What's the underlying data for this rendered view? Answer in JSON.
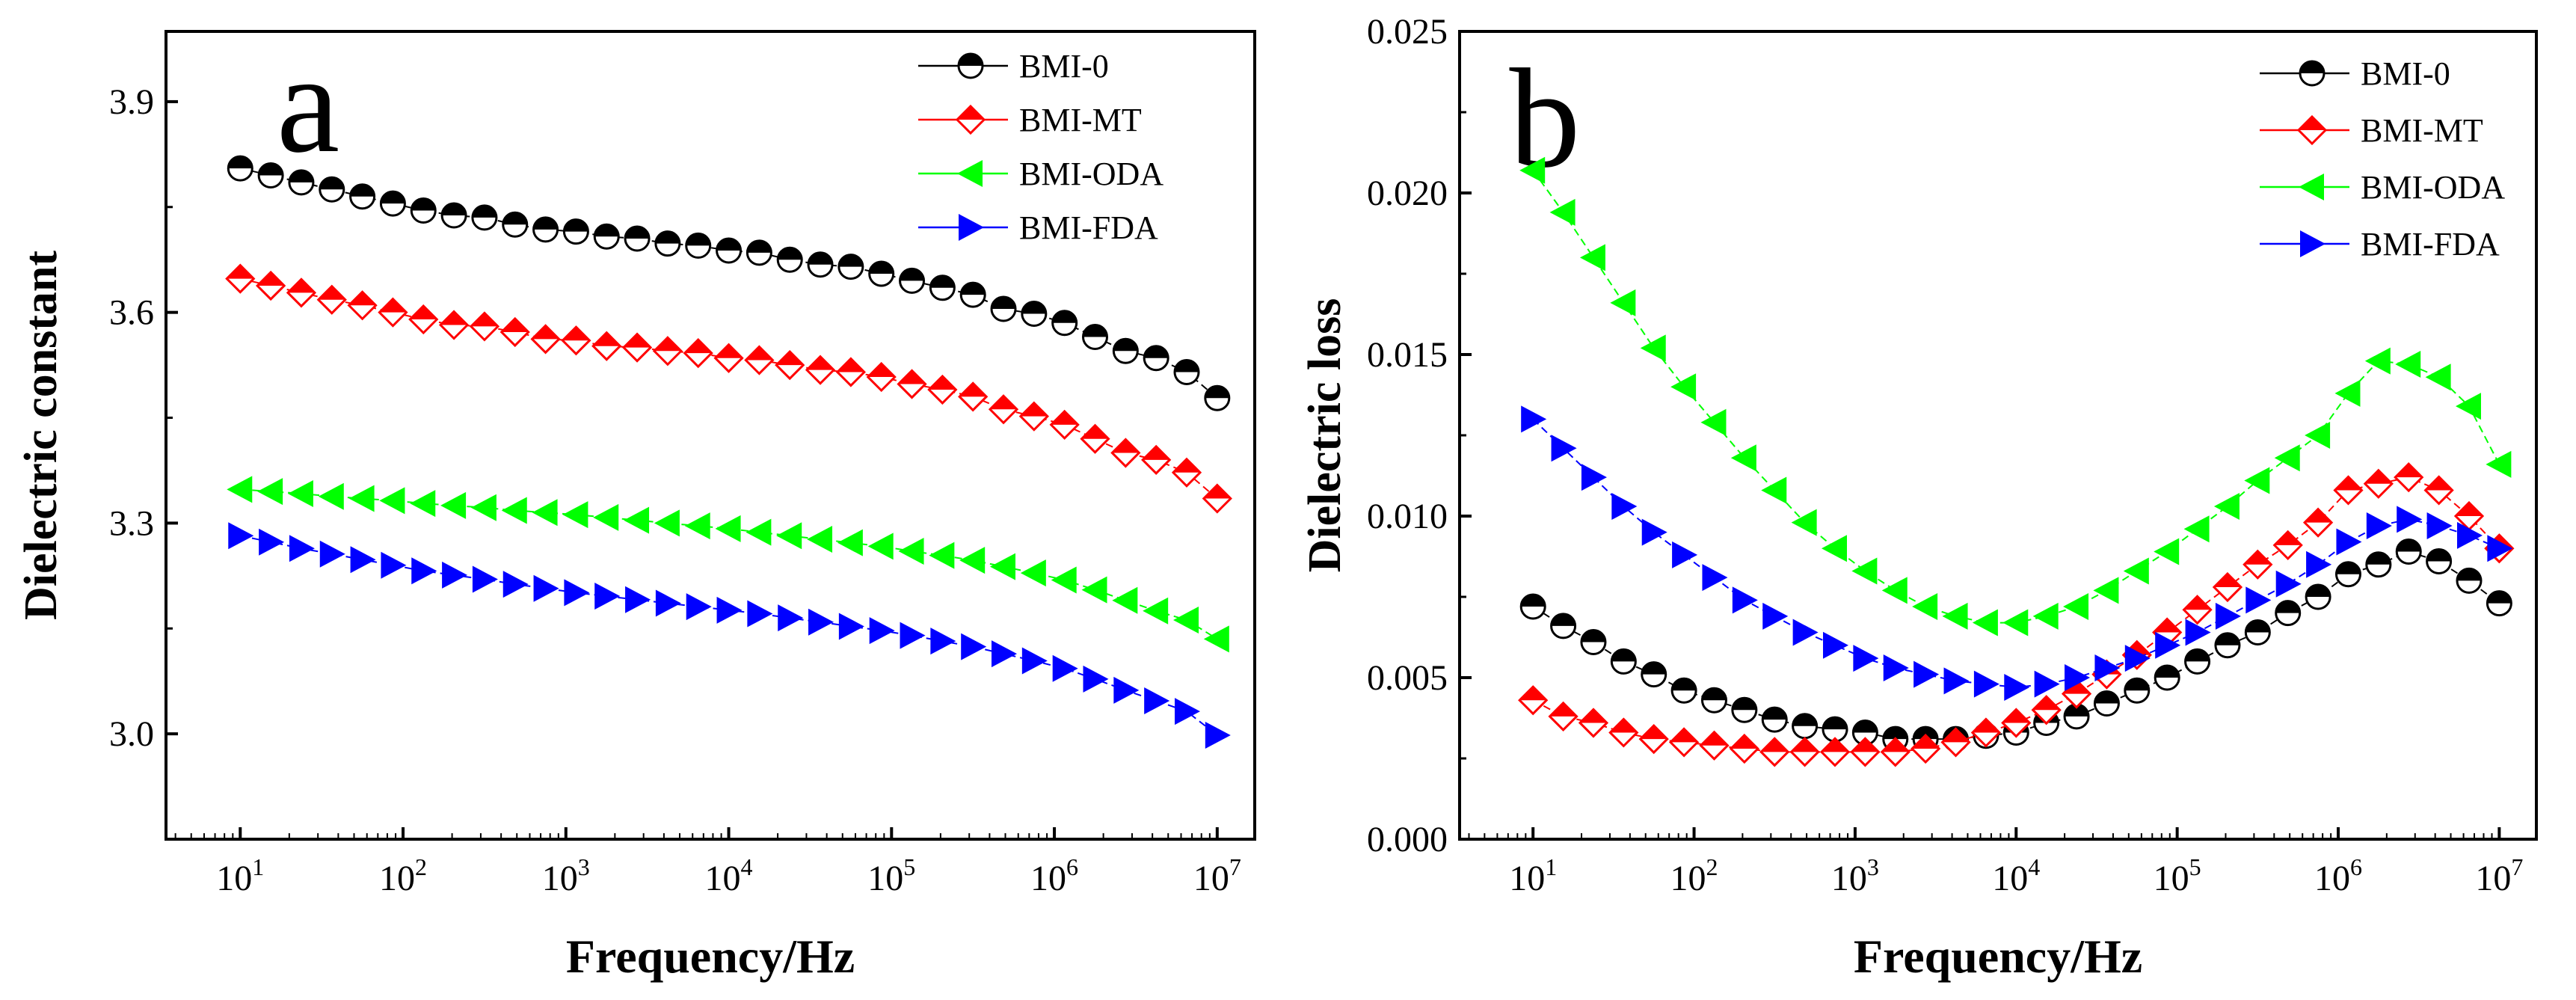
{
  "chart_data": [
    {
      "type": "scatter",
      "panel_label": "a",
      "xlabel": "Frequency/Hz",
      "ylabel": "Dielectric constant",
      "xscale": "log",
      "xlim": [
        3.5,
        17000000
      ],
      "ylim": [
        2.85,
        4.0
      ],
      "yticks": [
        "3.0",
        "3.3",
        "3.6",
        "3.9"
      ],
      "ytick_values": [
        3.0,
        3.3,
        3.6,
        3.9
      ],
      "xticks": [
        {
          "base": "10",
          "exp": "1",
          "value": 10
        },
        {
          "base": "10",
          "exp": "2",
          "value": 100
        },
        {
          "base": "10",
          "exp": "3",
          "value": 1000
        },
        {
          "base": "10",
          "exp": "4",
          "value": 10000
        },
        {
          "base": "10",
          "exp": "5",
          "value": 100000
        },
        {
          "base": "10",
          "exp": "6",
          "value": 1000000
        },
        {
          "base": "10",
          "exp": "7",
          "value": 10000000
        }
      ],
      "legend_position": "top-right",
      "series": [
        {
          "name": "BMI-0",
          "marker": "half-circle",
          "color": "#000000",
          "values": [
            3.805,
            3.795,
            3.785,
            3.775,
            3.765,
            3.755,
            3.745,
            3.738,
            3.735,
            3.725,
            3.718,
            3.715,
            3.708,
            3.705,
            3.698,
            3.695,
            3.688,
            3.685,
            3.675,
            3.668,
            3.665,
            3.655,
            3.645,
            3.635,
            3.625,
            3.605,
            3.598,
            3.585,
            3.565,
            3.545,
            3.535,
            3.515,
            3.478
          ]
        },
        {
          "name": "BMI-MT",
          "marker": "half-diamond",
          "color": "#ff0000",
          "values": [
            3.648,
            3.638,
            3.628,
            3.618,
            3.61,
            3.6,
            3.59,
            3.582,
            3.58,
            3.572,
            3.562,
            3.56,
            3.552,
            3.55,
            3.545,
            3.542,
            3.535,
            3.532,
            3.525,
            3.518,
            3.515,
            3.508,
            3.498,
            3.49,
            3.48,
            3.462,
            3.452,
            3.44,
            3.42,
            3.4,
            3.39,
            3.372,
            3.335
          ]
        },
        {
          "name": "BMI-ODA",
          "marker": "triangle-left",
          "color": "#00ff00",
          "values": [
            3.348,
            3.345,
            3.342,
            3.338,
            3.335,
            3.332,
            3.328,
            3.325,
            3.322,
            3.318,
            3.315,
            3.312,
            3.308,
            3.304,
            3.3,
            3.296,
            3.292,
            3.287,
            3.282,
            3.277,
            3.272,
            3.267,
            3.26,
            3.254,
            3.247,
            3.238,
            3.229,
            3.219,
            3.205,
            3.19,
            3.175,
            3.162,
            3.135
          ]
        },
        {
          "name": "BMI-FDA",
          "marker": "triangle-right",
          "color": "#0000ff",
          "values": [
            3.282,
            3.273,
            3.264,
            3.256,
            3.248,
            3.24,
            3.232,
            3.226,
            3.22,
            3.213,
            3.207,
            3.201,
            3.196,
            3.191,
            3.186,
            3.181,
            3.176,
            3.171,
            3.165,
            3.159,
            3.153,
            3.147,
            3.14,
            3.132,
            3.124,
            3.114,
            3.104,
            3.093,
            3.078,
            3.062,
            3.047,
            3.032,
            2.998
          ]
        }
      ]
    },
    {
      "type": "scatter",
      "panel_label": "b",
      "xlabel": "Frequency/Hz",
      "ylabel": "Dielectric loss",
      "xscale": "log",
      "xlim": [
        3.5,
        17000000
      ],
      "ylim": [
        0.0,
        0.025
      ],
      "yticks": [
        "0.000",
        "0.005",
        "0.010",
        "0.015",
        "0.020",
        "0.025"
      ],
      "ytick_values": [
        0.0,
        0.005,
        0.01,
        0.015,
        0.02,
        0.025
      ],
      "xticks": [
        {
          "base": "10",
          "exp": "1",
          "value": 10
        },
        {
          "base": "10",
          "exp": "2",
          "value": 100
        },
        {
          "base": "10",
          "exp": "3",
          "value": 1000
        },
        {
          "base": "10",
          "exp": "4",
          "value": 10000
        },
        {
          "base": "10",
          "exp": "5",
          "value": 100000
        },
        {
          "base": "10",
          "exp": "6",
          "value": 1000000
        },
        {
          "base": "10",
          "exp": "7",
          "value": 10000000
        }
      ],
      "legend_position": "top-right",
      "series": [
        {
          "name": "BMI-0",
          "marker": "half-circle",
          "color": "#000000",
          "values": [
            0.0072,
            0.0066,
            0.0061,
            0.0055,
            0.0051,
            0.0046,
            0.0043,
            0.004,
            0.0037,
            0.0035,
            0.0034,
            0.0033,
            0.0031,
            0.0031,
            0.0031,
            0.0032,
            0.0033,
            0.0036,
            0.0038,
            0.0042,
            0.0046,
            0.005,
            0.0055,
            0.006,
            0.0064,
            0.007,
            0.0075,
            0.0082,
            0.0085,
            0.0089,
            0.0086,
            0.008,
            0.0073
          ]
        },
        {
          "name": "BMI-MT",
          "marker": "half-diamond",
          "color": "#ff0000",
          "values": [
            0.0043,
            0.0038,
            0.0036,
            0.0033,
            0.0031,
            0.003,
            0.0029,
            0.0028,
            0.0027,
            0.0027,
            0.0027,
            0.0027,
            0.0027,
            0.0028,
            0.003,
            0.0033,
            0.0036,
            0.004,
            0.0045,
            0.0051,
            0.0057,
            0.0064,
            0.0071,
            0.0078,
            0.0085,
            0.0091,
            0.0098,
            0.0108,
            0.011,
            0.0112,
            0.0108,
            0.01,
            0.009
          ]
        },
        {
          "name": "BMI-ODA",
          "marker": "triangle-left",
          "color": "#00ff00",
          "values": [
            0.0207,
            0.0194,
            0.018,
            0.0166,
            0.0152,
            0.014,
            0.0129,
            0.0118,
            0.0108,
            0.0098,
            0.009,
            0.0083,
            0.0077,
            0.0072,
            0.0069,
            0.0067,
            0.0067,
            0.0069,
            0.0072,
            0.0077,
            0.0083,
            0.0089,
            0.0096,
            0.0103,
            0.0111,
            0.0118,
            0.0125,
            0.0138,
            0.0148,
            0.0147,
            0.0143,
            0.0134,
            0.0116
          ]
        },
        {
          "name": "BMI-FDA",
          "marker": "triangle-right",
          "color": "#0000ff",
          "values": [
            0.013,
            0.0121,
            0.0112,
            0.0103,
            0.0095,
            0.0088,
            0.0081,
            0.0074,
            0.0069,
            0.0064,
            0.006,
            0.0056,
            0.0053,
            0.0051,
            0.0049,
            0.0048,
            0.0047,
            0.0048,
            0.005,
            0.0053,
            0.0056,
            0.006,
            0.0064,
            0.0069,
            0.0074,
            0.0079,
            0.0085,
            0.0092,
            0.0097,
            0.0099,
            0.0097,
            0.0094,
            0.009
          ]
        }
      ]
    }
  ]
}
